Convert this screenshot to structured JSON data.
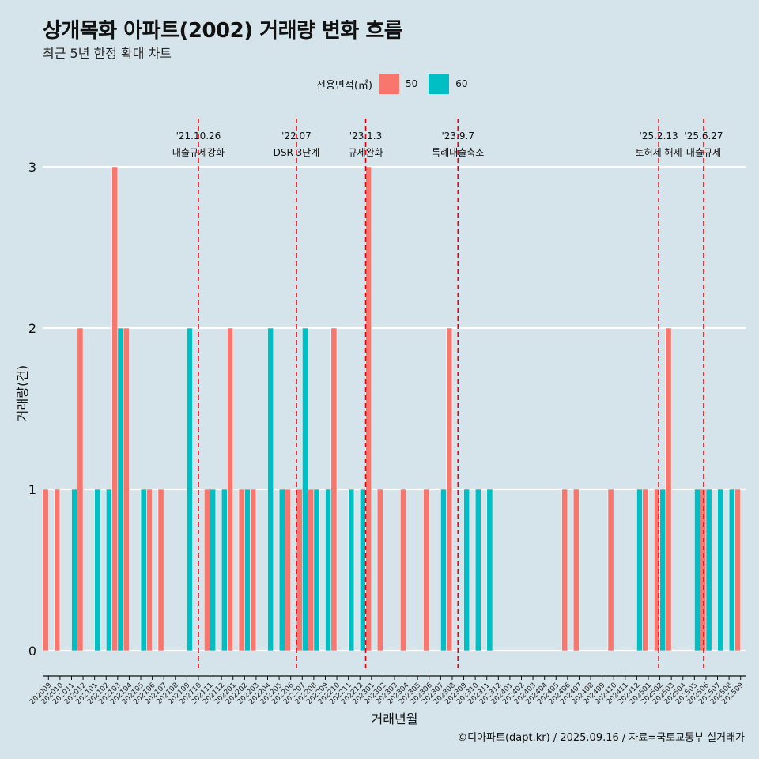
{
  "title": "상개목화 아파트(2002) 거래량 변화 흐름",
  "subtitle": "최근 5년 한정 확대 차트",
  "legend": {
    "title": "전용면적(㎡)",
    "items": [
      {
        "label": "50",
        "color": "#f8766d"
      },
      {
        "label": "60",
        "color": "#00bfc4"
      }
    ]
  },
  "caption": "©디아파트(dapt.kr) / 2025.09.16 / 자료=국토교통부 실거래가",
  "chart_data": {
    "type": "bar",
    "xlabel": "거래년월",
    "ylabel": "거래량(건)",
    "ylim": [
      0,
      3
    ],
    "yticks": [
      0,
      1,
      2,
      3
    ],
    "categories": [
      "202009",
      "202010",
      "202011",
      "202012",
      "202101",
      "202102",
      "202103",
      "202104",
      "202105",
      "202106",
      "202107",
      "202108",
      "202109",
      "202110",
      "202111",
      "202112",
      "202201",
      "202202",
      "202203",
      "202204",
      "202205",
      "202206",
      "202207",
      "202208",
      "202209",
      "202210",
      "202211",
      "202212",
      "202301",
      "202302",
      "202303",
      "202304",
      "202305",
      "202306",
      "202307",
      "202308",
      "202309",
      "202310",
      "202311",
      "202312",
      "202401",
      "202402",
      "202403",
      "202404",
      "202405",
      "202406",
      "202407",
      "202408",
      "202409",
      "202410",
      "202411",
      "202412",
      "202501",
      "202502",
      "202503",
      "202504",
      "202505",
      "202506",
      "202507",
      "202508",
      "202509"
    ],
    "series": [
      {
        "name": "50",
        "color": "#f8766d",
        "values": [
          1,
          1,
          0,
          2,
          0,
          0,
          3,
          2,
          0,
          1,
          1,
          0,
          0,
          0,
          1,
          0,
          2,
          1,
          1,
          0,
          0,
          1,
          1,
          1,
          0,
          2,
          0,
          0,
          3,
          1,
          0,
          1,
          0,
          1,
          0,
          2,
          0,
          0,
          0,
          0,
          0,
          0,
          0,
          0,
          0,
          1,
          1,
          0,
          0,
          1,
          0,
          0,
          1,
          1,
          2,
          0,
          0,
          1,
          0,
          0,
          1
        ]
      },
      {
        "name": "60",
        "color": "#00bfc4",
        "values": [
          0,
          0,
          1,
          0,
          1,
          1,
          2,
          0,
          1,
          0,
          0,
          0,
          2,
          0,
          1,
          1,
          0,
          1,
          0,
          2,
          1,
          0,
          2,
          1,
          1,
          0,
          1,
          1,
          0,
          0,
          0,
          0,
          0,
          0,
          1,
          0,
          1,
          1,
          1,
          0,
          0,
          0,
          0,
          0,
          0,
          0,
          0,
          0,
          0,
          0,
          0,
          1,
          0,
          1,
          0,
          0,
          1,
          1,
          1,
          1,
          0
        ]
      }
    ],
    "events": [
      {
        "date": "'21.10.26",
        "label": "대출규제강화",
        "index": 13.5
      },
      {
        "date": "'22.07",
        "label": "DSR 3단계",
        "index": 22
      },
      {
        "date": "'23.1.3",
        "label": "규제완화",
        "index": 28
      },
      {
        "date": "'23.9.7",
        "label": "특례대출축소",
        "index": 36
      },
      {
        "date": "'25.2.13",
        "label": "토허제 해제",
        "index": 53.4
      },
      {
        "date": "'25.6.27",
        "label": "대출규제",
        "index": 57.3
      }
    ]
  }
}
